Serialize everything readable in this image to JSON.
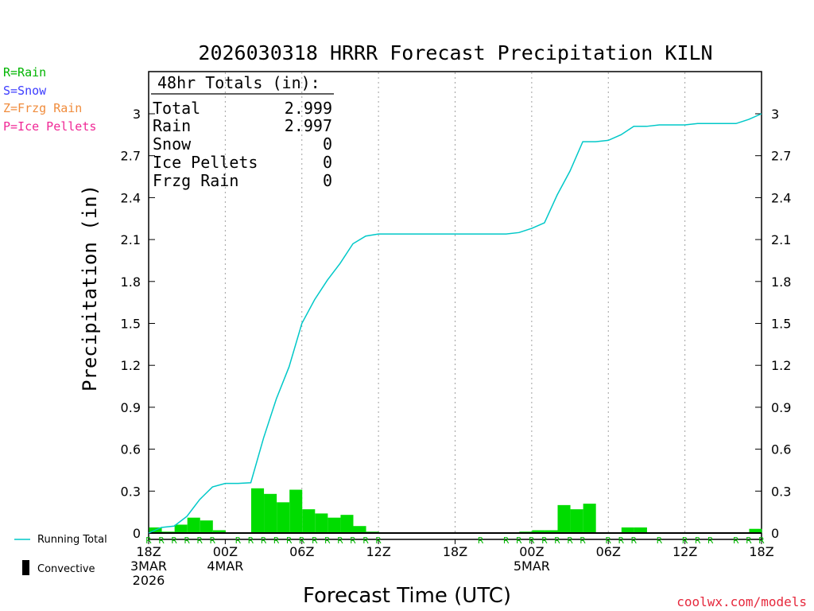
{
  "chart_data": {
    "type": "bar+line",
    "title": "2026030318 HRRR Forecast Precipitation KILN",
    "xlabel": "Forecast Time (UTC)",
    "ylabel": "Precipitation (in)",
    "ylim": [
      0,
      3.3
    ],
    "yticks": [
      "0",
      "0.3",
      "0.6",
      "0.9",
      "1.2",
      "1.5",
      "1.8",
      "2.1",
      "2.4",
      "2.7",
      "3"
    ],
    "ytick_values": [
      0,
      0.3,
      0.6,
      0.9,
      1.2,
      1.5,
      1.8,
      2.1,
      2.4,
      2.7,
      3.0
    ],
    "xlim_hours": [
      0,
      48
    ],
    "xticks": [
      {
        "hour": 0,
        "lines": [
          "18Z",
          "3MAR",
          "2026"
        ]
      },
      {
        "hour": 6,
        "lines": [
          "00Z",
          "4MAR"
        ]
      },
      {
        "hour": 12,
        "lines": [
          "06Z"
        ]
      },
      {
        "hour": 18,
        "lines": [
          "12Z"
        ]
      },
      {
        "hour": 24,
        "lines": [
          "18Z"
        ]
      },
      {
        "hour": 30,
        "lines": [
          "00Z",
          "5MAR"
        ]
      },
      {
        "hour": 36,
        "lines": [
          "06Z"
        ]
      },
      {
        "hour": 42,
        "lines": [
          "12Z"
        ]
      },
      {
        "hour": 48,
        "lines": [
          "18Z"
        ]
      }
    ],
    "hourly_precip": [
      0.04,
      0.01,
      0.06,
      0.11,
      0.09,
      0.02,
      0.0,
      0.0,
      0.32,
      0.28,
      0.22,
      0.31,
      0.17,
      0.14,
      0.11,
      0.13,
      0.05,
      0.01,
      0.0,
      0.0,
      0.0,
      0.0,
      0.0,
      0.0,
      0.0,
      0.0,
      0.0,
      0.0,
      0.0,
      0.01,
      0.02,
      0.02,
      0.2,
      0.17,
      0.21,
      0.0,
      0.0,
      0.04,
      0.04,
      0.0,
      0.005,
      0.0,
      0.0,
      0.005,
      0.0,
      0.0,
      0.0,
      0.03
    ],
    "running_total": [
      0.0,
      0.04,
      0.05,
      0.12,
      0.24,
      0.33,
      0.355,
      0.355,
      0.36,
      0.68,
      0.96,
      1.19,
      1.5,
      1.67,
      1.81,
      1.93,
      2.07,
      2.125,
      2.14,
      2.14,
      2.14,
      2.14,
      2.14,
      2.14,
      2.14,
      2.14,
      2.14,
      2.14,
      2.14,
      2.15,
      2.18,
      2.22,
      2.42,
      2.59,
      2.8,
      2.8,
      2.81,
      2.85,
      2.91,
      2.91,
      2.92,
      2.92,
      2.92,
      2.93,
      2.93,
      2.93,
      2.93,
      2.96,
      3.0
    ],
    "precip_type_hours": [
      0,
      1,
      2,
      3,
      4,
      5,
      7,
      8,
      9,
      10,
      11,
      12,
      13,
      14,
      15,
      16,
      17,
      18,
      26,
      28,
      29,
      30,
      31,
      32,
      33,
      34,
      36,
      37,
      38,
      40,
      42,
      43,
      44,
      46,
      47,
      48
    ],
    "precip_type_label": "R",
    "series": [
      {
        "name": "Running Total",
        "color": "#00c8c8"
      },
      {
        "name": "Convective",
        "color": "#000000"
      }
    ],
    "type_legend": [
      {
        "label": "R=Rain",
        "color": "#00b400"
      },
      {
        "label": "S=Snow",
        "color": "#3c3cff"
      },
      {
        "label": "Z=Frzg Rain",
        "color": "#f08c3c"
      },
      {
        "label": "P=Ice Pellets",
        "color": "#f02896"
      }
    ],
    "bar_color": "#00dc00",
    "totals_box": {
      "heading": "48hr Totals (in):",
      "rows": [
        {
          "label": "Total",
          "value": "2.999"
        },
        {
          "label": "Rain",
          "value": "2.997"
        },
        {
          "label": "Snow",
          "value": "0"
        },
        {
          "label": "Ice Pellets",
          "value": "0"
        },
        {
          "label": "Frzg Rain",
          "value": "0"
        }
      ]
    },
    "credit": "coolwx.com/models"
  }
}
